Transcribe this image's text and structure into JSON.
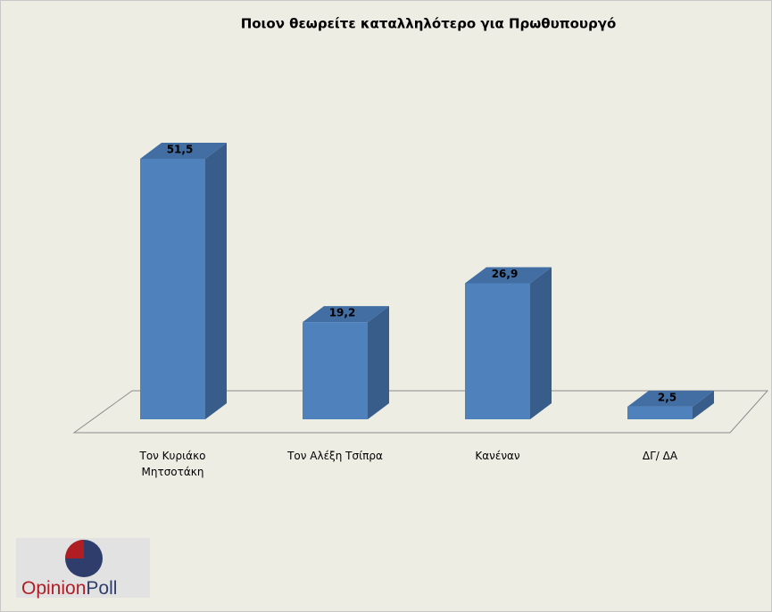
{
  "chart_data": {
    "type": "bar3d",
    "title": "Ποιον θεωρείτε καταλληλότερο για Πρωθυπουργό",
    "categories": [
      "Τον Κυριάκο Μητσοτάκη",
      "Τον Αλέξη Τσίπρα",
      "Κανέναν",
      "ΔΓ/ ΔΑ"
    ],
    "values": [
      51.5,
      19.2,
      26.9,
      2.5
    ],
    "value_labels": [
      "51,5",
      "19,2",
      "26,9",
      "2,5"
    ],
    "color": "#4f81bd"
  },
  "logo": [
    "Opinion",
    "Poll"
  ]
}
